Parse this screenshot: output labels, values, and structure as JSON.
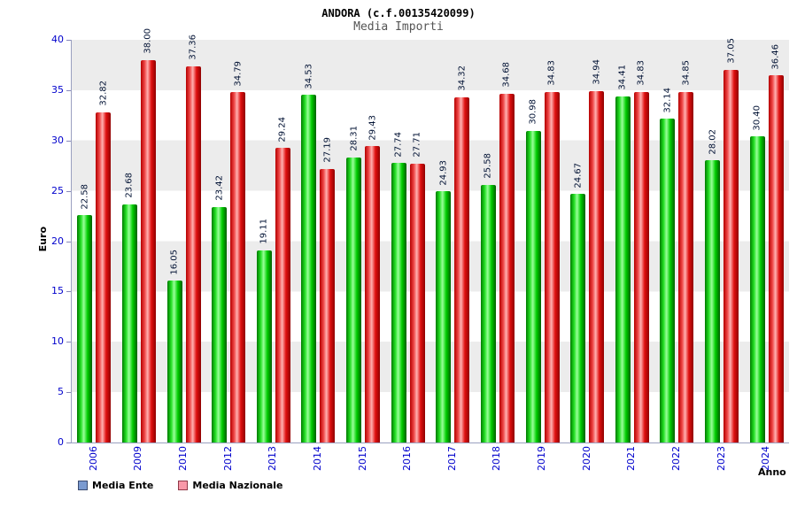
{
  "title": "ANDORA (c.f.00135420099)",
  "subtitle": "Media Importi",
  "chart_data": {
    "type": "bar",
    "title": "ANDORA (c.f.00135420099)",
    "subtitle": "Media Importi",
    "xlabel": "Anno",
    "ylabel": "Euro",
    "ylim": [
      0,
      40
    ],
    "yticks": [
      0,
      5,
      10,
      15,
      20,
      25,
      30,
      35,
      40
    ],
    "grid": "horizontal-bands",
    "legend_position": "bottom-left",
    "categories": [
      "2006",
      "2009",
      "2010",
      "2012",
      "2013",
      "2014",
      "2015",
      "2016",
      "2017",
      "2018",
      "2019",
      "2020",
      "2021",
      "2022",
      "2023",
      "2024"
    ],
    "series": [
      {
        "name": "Media Ente",
        "bar_color": "#00cc00",
        "legend_color": "#7a9ad0",
        "values": [
          22.58,
          23.68,
          16.05,
          23.42,
          19.11,
          34.53,
          28.31,
          27.74,
          24.93,
          25.58,
          30.98,
          24.67,
          34.41,
          32.14,
          28.02,
          30.4
        ]
      },
      {
        "name": "Media Nazionale",
        "bar_color": "#e01010",
        "legend_color": "#f898a8",
        "values": [
          32.82,
          38.0,
          37.36,
          34.79,
          29.24,
          27.19,
          29.43,
          27.71,
          34.32,
          34.68,
          34.83,
          34.94,
          34.83,
          34.85,
          37.05,
          36.46
        ]
      }
    ]
  },
  "colors": {
    "axis_text": "#0000cc",
    "band": "#ececec",
    "value_label": "#001133",
    "bar_ente": "#00cc00",
    "bar_nazionale": "#e01010"
  }
}
